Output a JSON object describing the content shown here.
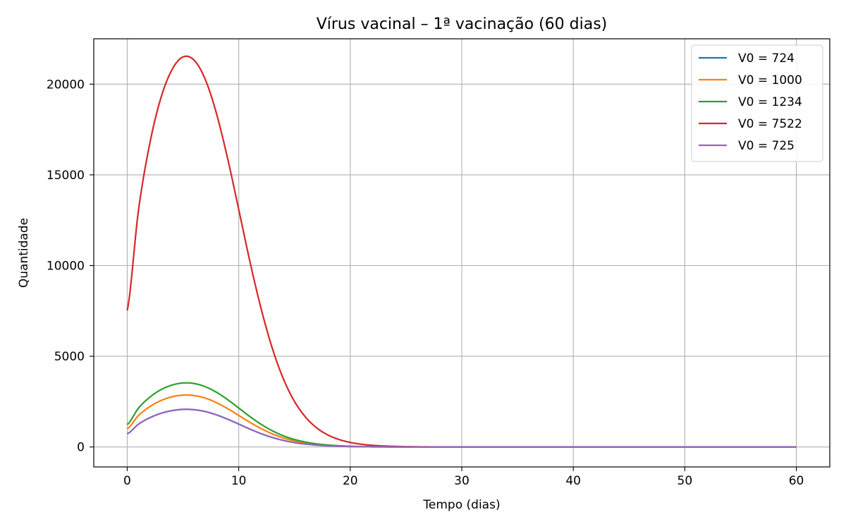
{
  "chart_data": {
    "type": "line",
    "title": "Vírus vacinal – 1ª vacinação (60 dias)",
    "xlabel": "Tempo (dias)",
    "ylabel": "Quantidade",
    "xlim": [
      -3,
      63
    ],
    "ylim": [
      -1100,
      22500
    ],
    "xticks": [
      0,
      10,
      20,
      30,
      40,
      50,
      60
    ],
    "yticks": [
      0,
      5000,
      10000,
      15000,
      20000
    ],
    "grid": true,
    "legend_position": "top-right",
    "x": [
      0,
      1,
      2,
      3,
      4,
      5,
      6,
      7,
      8,
      9,
      10,
      11,
      12,
      13,
      14,
      15,
      16,
      17,
      18,
      19,
      20,
      21,
      22,
      23,
      24,
      25,
      26,
      27,
      28,
      29,
      30,
      32,
      35,
      40,
      45,
      50,
      55,
      60
    ],
    "series": [
      {
        "name": "V0 = 724",
        "color": "#1f77b4",
        "values": [
          724,
          1251,
          1603,
          1848,
          2000,
          2070,
          2052,
          1950,
          1770,
          1532,
          1260,
          985,
          735,
          525,
          362,
          242,
          158,
          101,
          64,
          40,
          25,
          15,
          9,
          6,
          3,
          2,
          1,
          1,
          0,
          0,
          0,
          0,
          0,
          0,
          0,
          0,
          0,
          0
        ]
      },
      {
        "name": "V0 = 1000",
        "color": "#ff7f0e",
        "values": [
          1000,
          1728,
          2214,
          2552,
          2762,
          2860,
          2834,
          2693,
          2445,
          2116,
          1740,
          1360,
          1015,
          725,
          500,
          334,
          218,
          139,
          88,
          55,
          34,
          21,
          13,
          8,
          4,
          3,
          2,
          1,
          1,
          0,
          0,
          0,
          0,
          0,
          0,
          0,
          0,
          0
        ]
      },
      {
        "name": "V0 = 1234",
        "color": "#2ca02c",
        "values": [
          1234,
          2133,
          2732,
          3150,
          3409,
          3529,
          3497,
          3323,
          3017,
          2611,
          2147,
          1678,
          1252,
          895,
          617,
          412,
          269,
          172,
          109,
          68,
          42,
          26,
          16,
          10,
          6,
          3,
          2,
          1,
          1,
          0,
          0,
          0,
          0,
          0,
          0,
          0,
          0,
          0
        ]
      },
      {
        "name": "V0 = 7522",
        "color": "#d62728",
        "values": [
          7522,
          13000,
          16654,
          19200,
          20780,
          21500,
          21320,
          20260,
          18390,
          15910,
          13090,
          10230,
          7640,
          5460,
          3760,
          2510,
          1640,
          1050,
          660,
          410,
          250,
          150,
          90,
          55,
          33,
          20,
          12,
          7,
          4,
          2,
          1,
          0,
          0,
          0,
          0,
          0,
          0,
          0
        ]
      },
      {
        "name": "V0 = 725",
        "color": "#9467bd",
        "values": [
          725,
          1253,
          1605,
          1850,
          2003,
          2073,
          2055,
          1953,
          1772,
          1534,
          1262,
          986,
          736,
          526,
          363,
          242,
          158,
          101,
          64,
          40,
          25,
          15,
          9,
          6,
          3,
          2,
          1,
          1,
          0,
          0,
          0,
          0,
          0,
          0,
          0,
          0,
          0,
          0
        ]
      }
    ]
  }
}
